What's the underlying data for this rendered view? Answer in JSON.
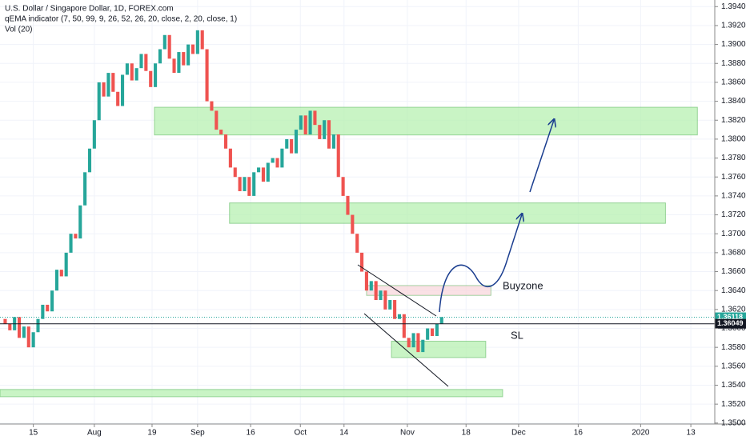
{
  "header": {
    "symbol": "U.S. Dollar / Singapore Dollar, 1D, FOREX.com",
    "indicator": "qEMA indicator (7, 50, 99, 9, 26, 52, 26, 20, close, 2, 20, close, 1)",
    "volume": "Vol (20)"
  },
  "labels": {
    "buyzone": "Buyzone",
    "sl": "SL"
  },
  "chart_data": {
    "type": "candlestick",
    "x": [
      -19,
      -18,
      -17,
      -16,
      -15,
      -14,
      -13,
      -12,
      -11,
      -10,
      -9,
      -8,
      -7,
      -6,
      -5,
      -4,
      -3,
      -2,
      -1,
      0,
      1,
      2,
      3,
      4,
      5,
      6,
      7,
      8,
      9,
      10,
      11,
      12,
      13,
      14,
      15,
      16,
      17,
      18,
      19,
      20,
      21,
      22,
      23,
      24,
      25,
      26,
      27,
      28,
      29,
      30,
      31,
      32,
      33,
      34,
      35,
      36,
      37,
      38,
      39,
      40,
      41,
      42,
      43,
      44,
      45,
      46,
      47,
      48,
      49,
      50,
      51,
      52,
      53,
      54,
      55,
      56,
      57,
      58,
      59,
      60,
      61,
      62,
      63,
      64,
      65,
      66,
      67,
      68,
      69,
      70,
      71,
      72,
      73,
      74
    ],
    "open": [
      1.361,
      1.3605,
      1.3598,
      1.3612,
      1.359,
      1.3602,
      1.358,
      1.3596,
      1.361,
      1.3625,
      1.3618,
      1.364,
      1.3662,
      1.3655,
      1.368,
      1.37,
      1.3695,
      1.373,
      1.3765,
      1.379,
      1.382,
      1.386,
      1.3845,
      1.387,
      1.385,
      1.3835,
      1.3868,
      1.388,
      1.3862,
      1.3875,
      1.389,
      1.3872,
      1.3855,
      1.388,
      1.3895,
      1.391,
      1.3885,
      1.387,
      1.3892,
      1.3878,
      1.39,
      1.389,
      1.3915,
      1.3895,
      1.384,
      1.383,
      1.381,
      1.3805,
      1.379,
      1.377,
      1.376,
      1.3745,
      1.376,
      1.374,
      1.3765,
      1.377,
      1.3755,
      1.3775,
      1.378,
      1.377,
      1.379,
      1.38,
      1.3785,
      1.381,
      1.3825,
      1.3805,
      1.383,
      1.3815,
      1.38,
      1.382,
      1.379,
      1.3805,
      1.376,
      1.374,
      1.372,
      1.37,
      1.368,
      1.366,
      1.364,
      1.365,
      1.363,
      1.364,
      1.362,
      1.363,
      1.361,
      1.3615,
      1.359,
      1.358,
      1.3595,
      1.3575,
      1.3588,
      1.36,
      1.3592,
      1.3605
    ],
    "close": [
      1.3605,
      1.3598,
      1.3612,
      1.359,
      1.3602,
      1.358,
      1.3596,
      1.361,
      1.3625,
      1.3618,
      1.364,
      1.3662,
      1.3655,
      1.368,
      1.37,
      1.3695,
      1.373,
      1.3765,
      1.379,
      1.382,
      1.386,
      1.3845,
      1.387,
      1.385,
      1.3835,
      1.3868,
      1.388,
      1.3862,
      1.3875,
      1.389,
      1.3872,
      1.3855,
      1.388,
      1.3895,
      1.391,
      1.3885,
      1.387,
      1.3892,
      1.3878,
      1.39,
      1.389,
      1.3915,
      1.3895,
      1.384,
      1.383,
      1.381,
      1.3805,
      1.379,
      1.377,
      1.376,
      1.3745,
      1.376,
      1.374,
      1.3765,
      1.377,
      1.3755,
      1.3775,
      1.378,
      1.377,
      1.379,
      1.38,
      1.3785,
      1.381,
      1.3825,
      1.3805,
      1.383,
      1.3815,
      1.38,
      1.382,
      1.379,
      1.3805,
      1.376,
      1.374,
      1.372,
      1.37,
      1.368,
      1.366,
      1.364,
      1.365,
      1.363,
      1.364,
      1.362,
      1.363,
      1.361,
      1.3615,
      1.359,
      1.358,
      1.3595,
      1.3575,
      1.3588,
      1.36,
      1.3592,
      1.3605,
      1.3612
    ],
    "up_color": "#26a69a",
    "down_color": "#ef5350",
    "xlim": [
      -20.1,
      132.2
    ],
    "ylim": [
      1.3499,
      1.3947
    ],
    "xticks": [
      {
        "value": -13,
        "label": "15"
      },
      {
        "value": 0,
        "label": "Aug"
      },
      {
        "value": 12.3,
        "label": "19"
      },
      {
        "value": 22,
        "label": "Sep"
      },
      {
        "value": 33.3,
        "label": "16"
      },
      {
        "value": 43.9,
        "label": "Oct"
      },
      {
        "value": 53.2,
        "label": "14"
      },
      {
        "value": 66.7,
        "label": "Nov"
      },
      {
        "value": 79.2,
        "label": "18"
      },
      {
        "value": 90.4,
        "label": "Dec"
      },
      {
        "value": 103.1,
        "label": "16"
      },
      {
        "value": 116.4,
        "label": "2020"
      },
      {
        "value": 127.1,
        "label": "13"
      }
    ],
    "yticks": [
      {
        "value": 1.35,
        "label": "1.35000"
      },
      {
        "value": 1.352,
        "label": "1.35200"
      },
      {
        "value": 1.354,
        "label": "1.35400"
      },
      {
        "value": 1.356,
        "label": "1.35600"
      },
      {
        "value": 1.358,
        "label": "1.35800"
      },
      {
        "value": 1.36,
        "label": "1.36000"
      },
      {
        "value": 1.362,
        "label": "1.36200"
      },
      {
        "value": 1.364,
        "label": "1.36400"
      },
      {
        "value": 1.366,
        "label": "1.36600"
      },
      {
        "value": 1.368,
        "label": "1.36800"
      },
      {
        "value": 1.37,
        "label": "1.37000"
      },
      {
        "value": 1.372,
        "label": "1.37200"
      },
      {
        "value": 1.374,
        "label": "1.37400"
      },
      {
        "value": 1.376,
        "label": "1.37600"
      },
      {
        "value": 1.378,
        "label": "1.37800"
      },
      {
        "value": 1.38,
        "label": "1.38000"
      },
      {
        "value": 1.382,
        "label": "1.38200"
      },
      {
        "value": 1.384,
        "label": "1.38400"
      },
      {
        "value": 1.386,
        "label": "1.38600"
      },
      {
        "value": 1.388,
        "label": "1.38800"
      },
      {
        "value": 1.39,
        "label": "1.39000"
      },
      {
        "value": 1.392,
        "label": "1.39200"
      },
      {
        "value": 1.394,
        "label": "1.39400"
      }
    ],
    "grid": true,
    "price_lines": [
      {
        "value": 1.36118,
        "label": "1.36118",
        "color": "#26a69a"
      },
      {
        "value": 1.36049,
        "label": "1.36049",
        "color": "#131722"
      }
    ],
    "zones": [
      {
        "top": 1.38337,
        "bottom": 1.38044,
        "x0": 12.8,
        "x1": 128.5,
        "color": "#b7f0b1"
      },
      {
        "top": 1.37326,
        "bottom": 1.3711,
        "x0": 28.8,
        "x1": 121.7,
        "color": "#b7f0b1"
      },
      {
        "top": 1.35865,
        "bottom": 1.35692,
        "x0": 63.3,
        "x1": 83.4,
        "color": "#b7f0b1"
      },
      {
        "top": 1.35355,
        "bottom": 1.35278,
        "x0": -20.1,
        "x1": 87.0,
        "color": "#b7f0b1"
      },
      {
        "top": 1.36453,
        "bottom": 1.36349,
        "x0": 58.0,
        "x1": 84.5,
        "color": "#f8d7dc"
      }
    ]
  }
}
